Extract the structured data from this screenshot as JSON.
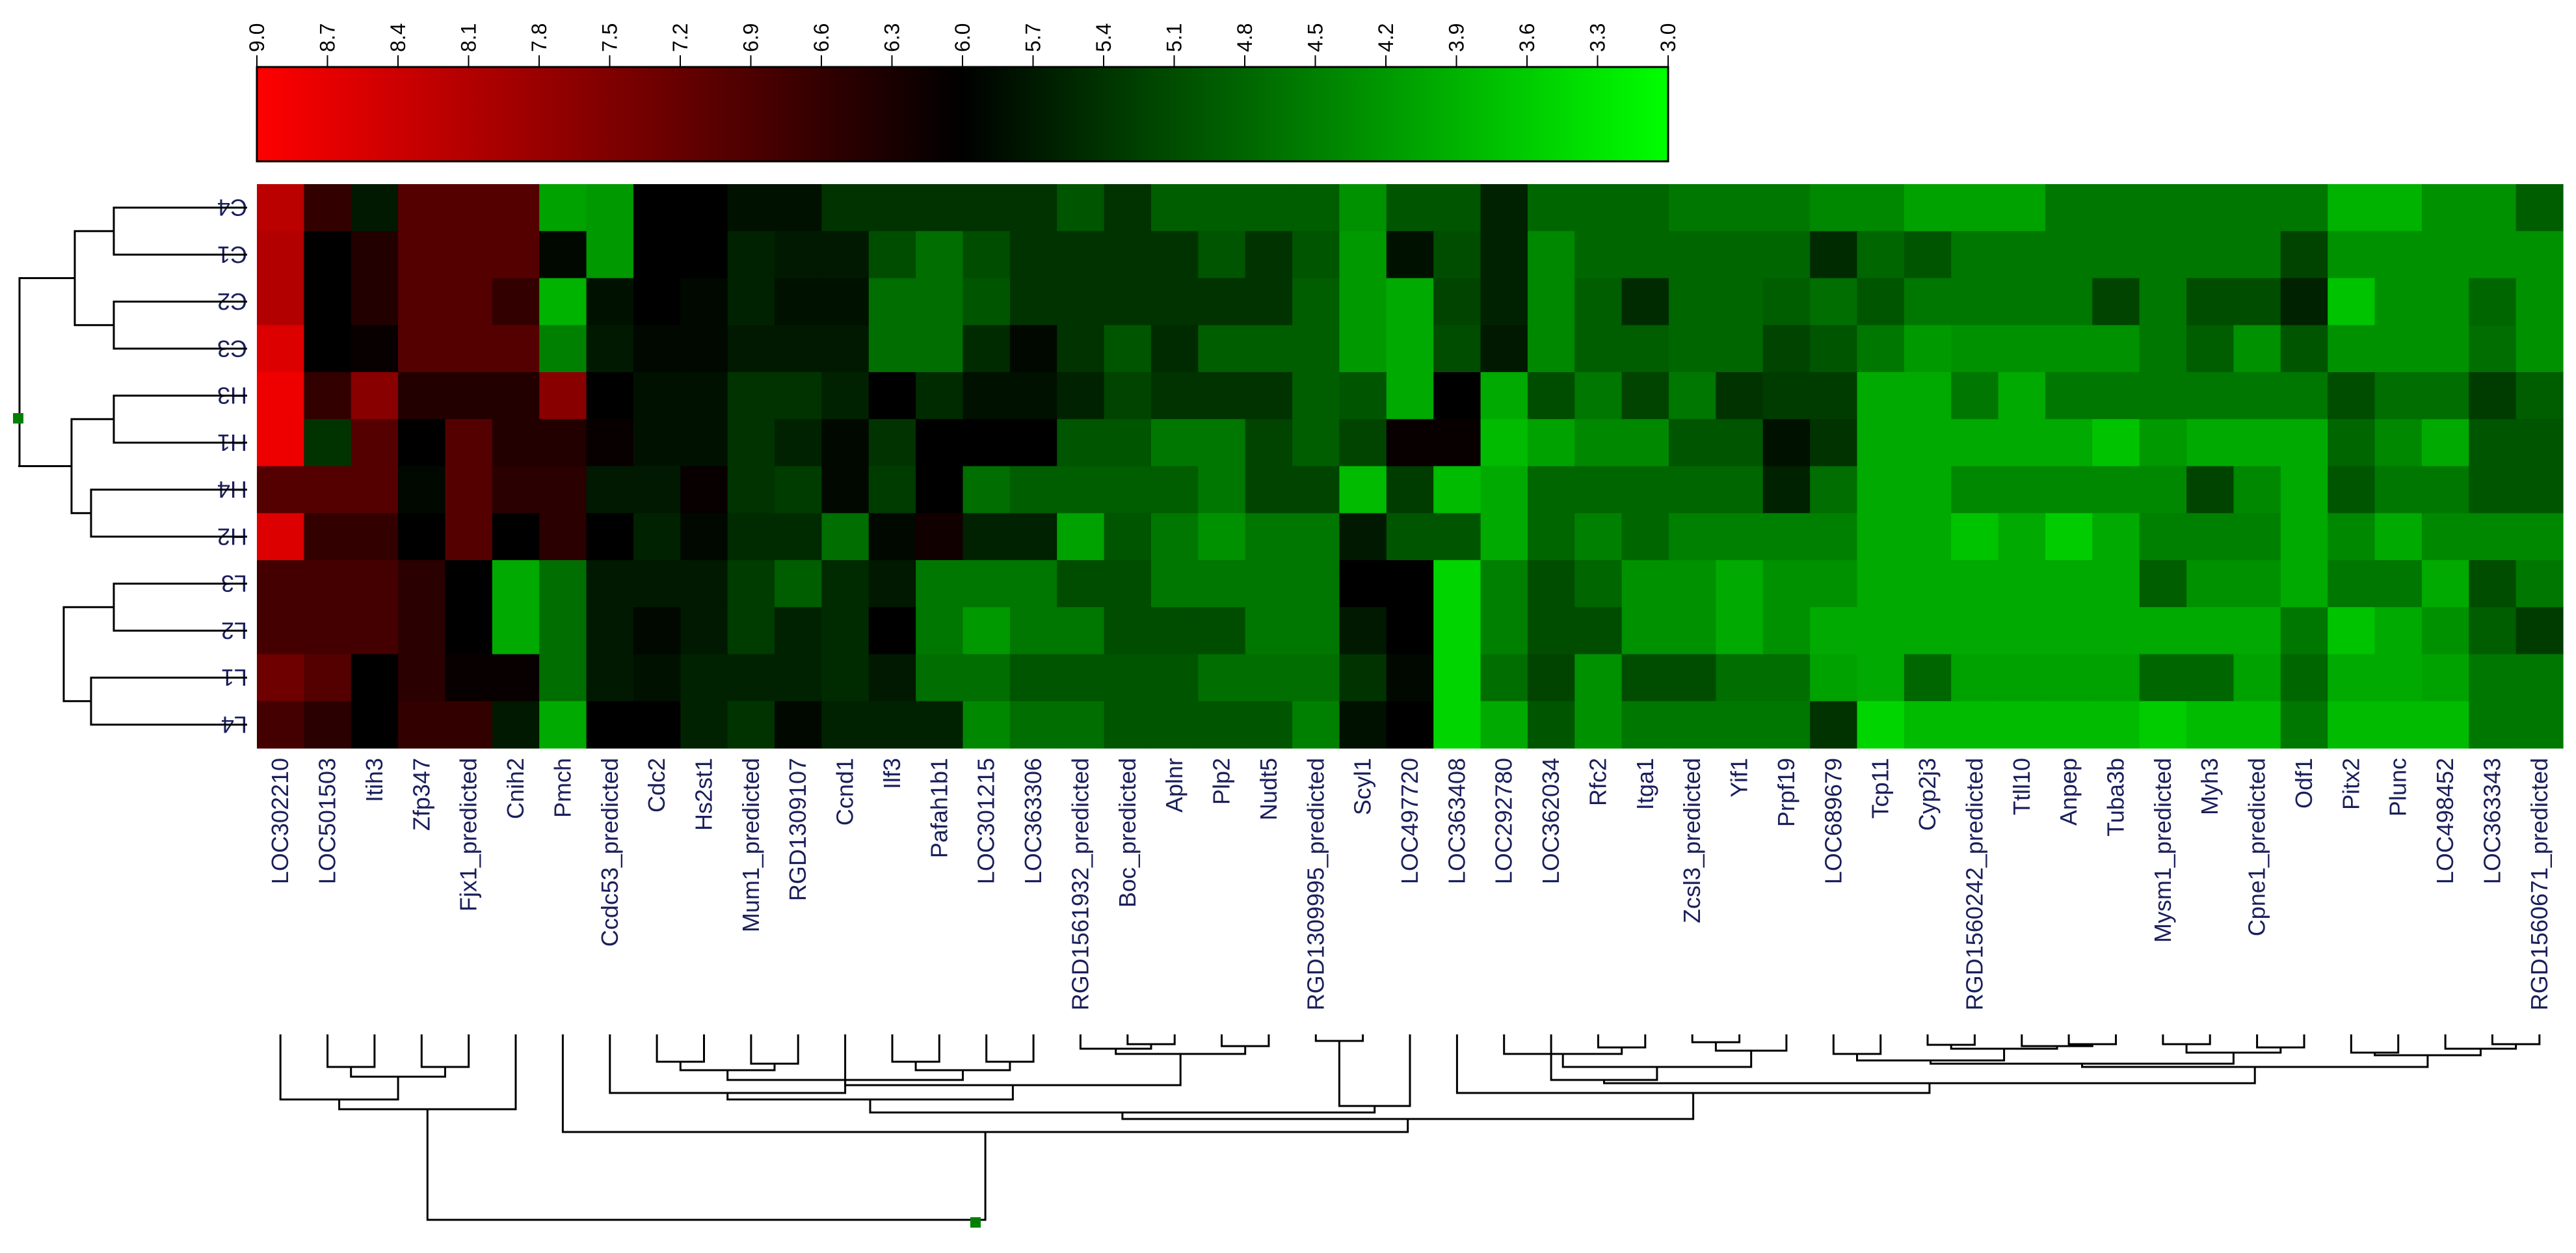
{
  "chart_data": {
    "type": "heatmap",
    "title": "",
    "colorbar": {
      "ticks": [
        "9.0",
        "8.7",
        "8.4",
        "8.1",
        "7.8",
        "7.5",
        "7.2",
        "6.9",
        "6.6",
        "6.3",
        "6.0",
        "5.7",
        "5.4",
        "5.1",
        "4.8",
        "4.5",
        "4.2",
        "3.9",
        "3.6",
        "3.3",
        "3.0"
      ],
      "min": 3.0,
      "max": 9.0,
      "mid": 6.0,
      "high_color": "#ff0000",
      "mid_color": "#000000",
      "low_color": "#00ff00"
    },
    "rows": [
      "C4",
      "C1",
      "C2",
      "C3",
      "H3",
      "H1",
      "H4",
      "H2",
      "L3",
      "L2",
      "L1",
      "L4"
    ],
    "columns": [
      "LOC302210",
      "LOC501503",
      "Itih3",
      "Zfp347",
      "Fjx1_predicted",
      "Cnih2",
      "Pmch",
      "Ccdc53_predicted",
      "Cdc2",
      "Hs2st1",
      "Mum1_predicted",
      "RGD1309107",
      "Ccnd1",
      "Ilf3",
      "Pafah1b1",
      "LOC301215",
      "LOC363306",
      "RGD1561932_predicted",
      "Boc_predicted",
      "Aplnr",
      "Plp2",
      "Nudt5",
      "RGD1309995_predicted",
      "Scyl1",
      "LOC497720",
      "LOC363408",
      "LOC292780",
      "LOC362034",
      "Rfc2",
      "Itga1",
      "Zcsl3_predicted",
      "Yif1",
      "Prpf19",
      "LOC689679",
      "Tcp11",
      "Cyp2j3",
      "RGD1560242_predicted",
      "Ttll10",
      "Anpep",
      "Tuba3b",
      "Mysm1_predicted",
      "Myh3",
      "Cpne1_predicted",
      "Odf1",
      "Pitx2",
      "Plunc",
      "LOC498452",
      "LOC363343",
      "RGD1560671_predicted"
    ],
    "matrix": [
      [
        8.2,
        6.6,
        5.7,
        7.0,
        7.0,
        7.0,
        4.1,
        4.2,
        6.0,
        6.0,
        5.8,
        5.8,
        5.4,
        5.4,
        5.4,
        5.4,
        5.4,
        5.0,
        5.4,
        4.9,
        4.9,
        4.9,
        4.9,
        4.3,
        5.0,
        5.0,
        5.6,
        4.8,
        4.8,
        4.8,
        4.6,
        4.6,
        4.6,
        4.4,
        4.4,
        4.1,
        4.1,
        4.1,
        4.6,
        4.6,
        4.6,
        4.6,
        4.6,
        4.6,
        3.9,
        3.9,
        4.3,
        4.3,
        4.9
      ],
      [
        8.1,
        6.0,
        6.4,
        7.0,
        7.0,
        7.0,
        5.9,
        4.2,
        6.0,
        6.0,
        5.6,
        5.7,
        5.7,
        5.1,
        4.7,
        5.1,
        5.4,
        5.4,
        5.4,
        5.4,
        5.0,
        5.4,
        5.0,
        4.2,
        5.8,
        5.1,
        5.6,
        4.4,
        4.8,
        4.8,
        4.8,
        4.8,
        4.8,
        5.5,
        4.8,
        5.0,
        4.6,
        4.6,
        4.6,
        4.6,
        4.6,
        4.6,
        4.6,
        5.2,
        4.3,
        4.3,
        4.3,
        4.3,
        4.3
      ],
      [
        8.1,
        6.0,
        6.4,
        7.0,
        7.0,
        6.6,
        3.9,
        5.8,
        6.0,
        5.9,
        5.6,
        5.8,
        5.8,
        4.7,
        4.7,
        5.0,
        5.4,
        5.4,
        5.4,
        5.4,
        5.4,
        5.4,
        4.9,
        4.2,
        4.0,
        5.2,
        5.6,
        4.4,
        4.9,
        5.5,
        4.8,
        4.8,
        4.9,
        4.7,
        5.0,
        4.6,
        4.6,
        4.6,
        4.6,
        5.2,
        4.6,
        5.1,
        5.1,
        5.6,
        3.7,
        4.3,
        4.3,
        4.8,
        4.3
      ],
      [
        8.6,
        6.0,
        6.1,
        7.0,
        7.0,
        7.0,
        4.5,
        5.7,
        5.9,
        5.9,
        5.7,
        5.7,
        5.7,
        4.7,
        4.7,
        5.5,
        5.9,
        5.4,
        5.0,
        5.5,
        4.9,
        4.9,
        4.9,
        4.2,
        4.0,
        5.1,
        5.7,
        4.4,
        4.9,
        4.9,
        4.8,
        4.8,
        5.2,
        5.0,
        4.6,
        4.2,
        4.3,
        4.3,
        4.3,
        4.3,
        4.6,
        4.9,
        4.3,
        5.0,
        4.3,
        4.3,
        4.3,
        4.7,
        4.3
      ],
      [
        8.8,
        6.6,
        7.6,
        6.4,
        6.4,
        6.4,
        7.6,
        6.0,
        5.8,
        5.8,
        5.4,
        5.4,
        5.6,
        6.0,
        5.5,
        5.8,
        5.8,
        5.6,
        5.2,
        5.4,
        5.4,
        5.4,
        4.9,
        5.0,
        4.0,
        6.0,
        4.0,
        5.1,
        4.6,
        5.2,
        4.6,
        5.4,
        5.3,
        5.3,
        4.0,
        4.0,
        4.6,
        4.0,
        4.6,
        4.6,
        4.6,
        4.6,
        4.6,
        4.6,
        5.1,
        4.7,
        4.7,
        5.3,
        4.9
      ],
      [
        8.8,
        5.4,
        7.0,
        6.0,
        7.0,
        6.4,
        6.4,
        6.1,
        5.8,
        5.8,
        5.4,
        5.6,
        5.9,
        5.4,
        6.0,
        6.0,
        6.0,
        5.0,
        5.0,
        4.6,
        4.6,
        5.2,
        4.9,
        5.2,
        6.1,
        6.1,
        3.8,
        4.1,
        4.4,
        4.4,
        5.0,
        5.0,
        5.8,
        5.4,
        4.0,
        4.0,
        4.0,
        4.0,
        4.0,
        3.7,
        4.2,
        4.0,
        4.0,
        4.0,
        4.8,
        4.4,
        4.0,
        5.0,
        5.0
      ],
      [
        7.0,
        7.0,
        7.0,
        5.9,
        7.0,
        6.5,
        6.5,
        5.7,
        5.7,
        6.1,
        5.4,
        5.3,
        5.9,
        5.3,
        6.0,
        4.7,
        4.9,
        4.9,
        4.9,
        4.9,
        4.6,
        5.2,
        5.2,
        3.8,
        5.3,
        3.8,
        4.0,
        4.8,
        4.8,
        4.8,
        4.8,
        4.8,
        5.6,
        4.7,
        4.0,
        4.0,
        4.4,
        4.4,
        4.4,
        4.4,
        4.4,
        5.2,
        4.4,
        4.0,
        5.0,
        4.6,
        4.6,
        5.0,
        5.0
      ],
      [
        8.6,
        6.6,
        6.6,
        6.0,
        7.0,
        6.0,
        6.5,
        6.0,
        5.6,
        5.9,
        5.5,
        5.5,
        4.7,
        5.9,
        6.2,
        5.6,
        5.6,
        4.1,
        5.0,
        4.6,
        4.3,
        4.6,
        4.6,
        5.7,
        5.0,
        5.0,
        4.0,
        4.8,
        4.5,
        4.8,
        4.5,
        4.5,
        4.5,
        4.5,
        4.0,
        4.0,
        3.7,
        4.0,
        3.6,
        4.0,
        4.5,
        4.5,
        4.5,
        4.0,
        4.4,
        4.0,
        4.4,
        4.4,
        4.4
      ],
      [
        6.8,
        6.8,
        6.8,
        6.5,
        6.0,
        4.0,
        4.7,
        5.7,
        5.7,
        5.7,
        5.3,
        4.9,
        5.5,
        5.7,
        4.6,
        4.6,
        4.6,
        5.1,
        5.1,
        4.6,
        4.6,
        4.6,
        4.6,
        6.0,
        6.0,
        3.5,
        4.5,
        5.1,
        4.8,
        4.3,
        4.3,
        4.0,
        4.3,
        4.3,
        4.0,
        4.0,
        4.0,
        4.0,
        4.0,
        4.0,
        4.9,
        4.3,
        4.3,
        4.0,
        4.6,
        4.6,
        4.0,
        5.1,
        4.6
      ],
      [
        6.8,
        6.8,
        6.8,
        6.5,
        6.0,
        4.0,
        4.7,
        5.7,
        5.9,
        5.7,
        5.3,
        5.6,
        5.5,
        6.0,
        4.6,
        4.2,
        4.6,
        4.6,
        5.1,
        5.1,
        5.1,
        4.6,
        4.6,
        5.7,
        6.0,
        3.5,
        4.5,
        5.1,
        5.1,
        4.3,
        4.3,
        4.0,
        4.3,
        4.0,
        4.0,
        4.0,
        4.0,
        4.0,
        4.0,
        4.0,
        4.0,
        4.0,
        4.0,
        4.6,
        3.7,
        4.0,
        4.3,
        4.9,
        5.3
      ],
      [
        7.3,
        7.0,
        6.0,
        6.5,
        6.1,
        6.1,
        4.7,
        5.7,
        5.8,
        5.6,
        5.6,
        5.6,
        5.5,
        5.7,
        4.7,
        4.7,
        5.0,
        5.0,
        5.0,
        5.0,
        4.7,
        4.7,
        4.7,
        5.4,
        5.9,
        3.5,
        4.7,
        5.2,
        4.3,
        5.1,
        5.1,
        4.7,
        4.7,
        4.1,
        4.0,
        4.8,
        4.1,
        4.1,
        4.1,
        4.1,
        4.8,
        4.8,
        4.1,
        4.8,
        4.0,
        4.0,
        4.1,
        4.6,
        4.6
      ],
      [
        6.8,
        6.5,
        6.0,
        6.6,
        6.6,
        5.7,
        4.0,
        6.0,
        6.0,
        5.6,
        5.4,
        5.9,
        5.6,
        5.6,
        5.6,
        4.4,
        4.7,
        4.7,
        5.0,
        5.0,
        5.0,
        5.0,
        4.5,
        5.8,
        6.0,
        3.5,
        4.0,
        5.0,
        4.3,
        4.6,
        4.6,
        4.6,
        4.6,
        5.4,
        3.5,
        3.8,
        3.8,
        3.8,
        3.8,
        3.8,
        3.6,
        3.8,
        3.8,
        4.6,
        3.8,
        3.8,
        3.8,
        4.6,
        4.6
      ]
    ]
  }
}
